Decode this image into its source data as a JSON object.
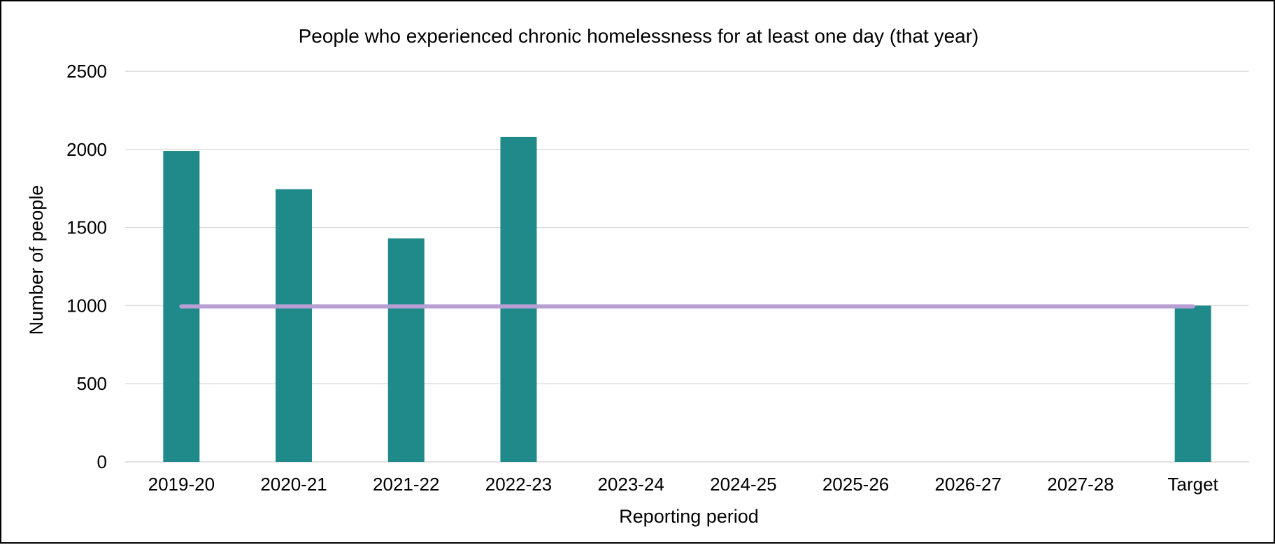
{
  "chart_data": {
    "type": "bar",
    "title": "People who experienced chronic homelessness for at least one day (that year)",
    "xlabel": "Reporting period",
    "ylabel": "Number of people",
    "categories": [
      "2019-20",
      "2020-21",
      "2021-22",
      "2022-23",
      "2023-24",
      "2024-25",
      "2025-26",
      "2026-27",
      "2027-28",
      "Target"
    ],
    "values": [
      1990,
      1745,
      1430,
      2080,
      null,
      null,
      null,
      null,
      null,
      1000
    ],
    "ylim": [
      0,
      2500
    ],
    "yticks": [
      0,
      500,
      1000,
      1500,
      2000,
      2500
    ],
    "grid": true,
    "legend": "none",
    "bar_color": "#1f8a89",
    "target_line": {
      "value": 995,
      "color": "#b79fd4"
    }
  }
}
